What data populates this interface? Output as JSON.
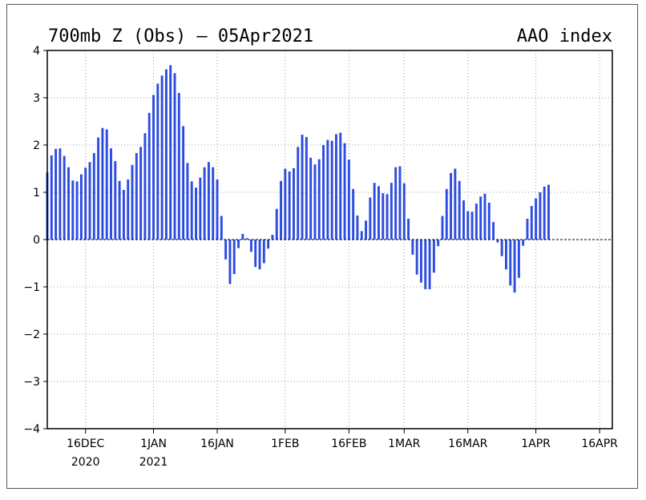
{
  "chart_data": {
    "type": "bar",
    "title_left": "700mb Z (Obs) — 05Apr2021",
    "title_right": "AAO index",
    "ylim": [
      -4,
      4
    ],
    "yticks": [
      4,
      3,
      2,
      1,
      0,
      -1,
      -2,
      -3,
      -4
    ],
    "ytick_labels": [
      "4",
      "3",
      "2",
      "1",
      "0",
      "−1",
      "−2",
      "−3",
      "−4"
    ],
    "xlim": [
      "2020-12-07",
      "2021-04-19"
    ],
    "xticks": [
      {
        "date": "2020-12-16",
        "label": "16DEC",
        "sublabel": "2020"
      },
      {
        "date": "2021-01-01",
        "label": "1JAN",
        "sublabel": "2021"
      },
      {
        "date": "2021-01-16",
        "label": "16JAN",
        "sublabel": ""
      },
      {
        "date": "2021-02-01",
        "label": "1FEB",
        "sublabel": ""
      },
      {
        "date": "2021-02-16",
        "label": "16FEB",
        "sublabel": ""
      },
      {
        "date": "2021-03-01",
        "label": "1MAR",
        "sublabel": ""
      },
      {
        "date": "2021-03-16",
        "label": "16MAR",
        "sublabel": ""
      },
      {
        "date": "2021-04-01",
        "label": "1APR",
        "sublabel": ""
      },
      {
        "date": "2021-04-16",
        "label": "16APR",
        "sublabel": ""
      }
    ],
    "grid": true,
    "bar_color": "#2d4ce0",
    "start_date": "2020-12-07",
    "values": [
      1.42,
      1.78,
      1.92,
      1.93,
      1.77,
      1.53,
      1.25,
      1.23,
      1.38,
      1.52,
      1.64,
      1.83,
      2.16,
      2.36,
      2.33,
      1.93,
      1.66,
      1.24,
      1.05,
      1.27,
      1.58,
      1.83,
      1.96,
      2.25,
      2.68,
      3.06,
      3.3,
      3.47,
      3.6,
      3.69,
      3.52,
      3.1,
      2.4,
      1.62,
      1.23,
      1.1,
      1.31,
      1.53,
      1.64,
      1.53,
      1.27,
      0.5,
      -0.42,
      -0.94,
      -0.73,
      -0.18,
      0.12,
      0.03,
      -0.26,
      -0.58,
      -0.63,
      -0.5,
      -0.19,
      0.1,
      0.65,
      1.24,
      1.5,
      1.44,
      1.51,
      1.96,
      2.22,
      2.17,
      1.73,
      1.59,
      1.7,
      2.0,
      2.11,
      2.09,
      2.23,
      2.26,
      2.04,
      1.69,
      1.07,
      0.51,
      0.18,
      0.4,
      0.89,
      1.2,
      1.13,
      0.98,
      0.96,
      1.2,
      1.53,
      1.55,
      1.19,
      0.44,
      -0.32,
      -0.74,
      -0.91,
      -1.05,
      -1.05,
      -0.7,
      -0.14,
      0.5,
      1.07,
      1.41,
      1.5,
      1.24,
      0.83,
      0.6,
      0.59,
      0.76,
      0.91,
      0.97,
      0.78,
      0.37,
      -0.06,
      -0.35,
      -0.63,
      -0.97,
      -1.12,
      -0.81,
      -0.13,
      0.44,
      0.71,
      0.87,
      1.0,
      1.12,
      1.16
    ]
  }
}
